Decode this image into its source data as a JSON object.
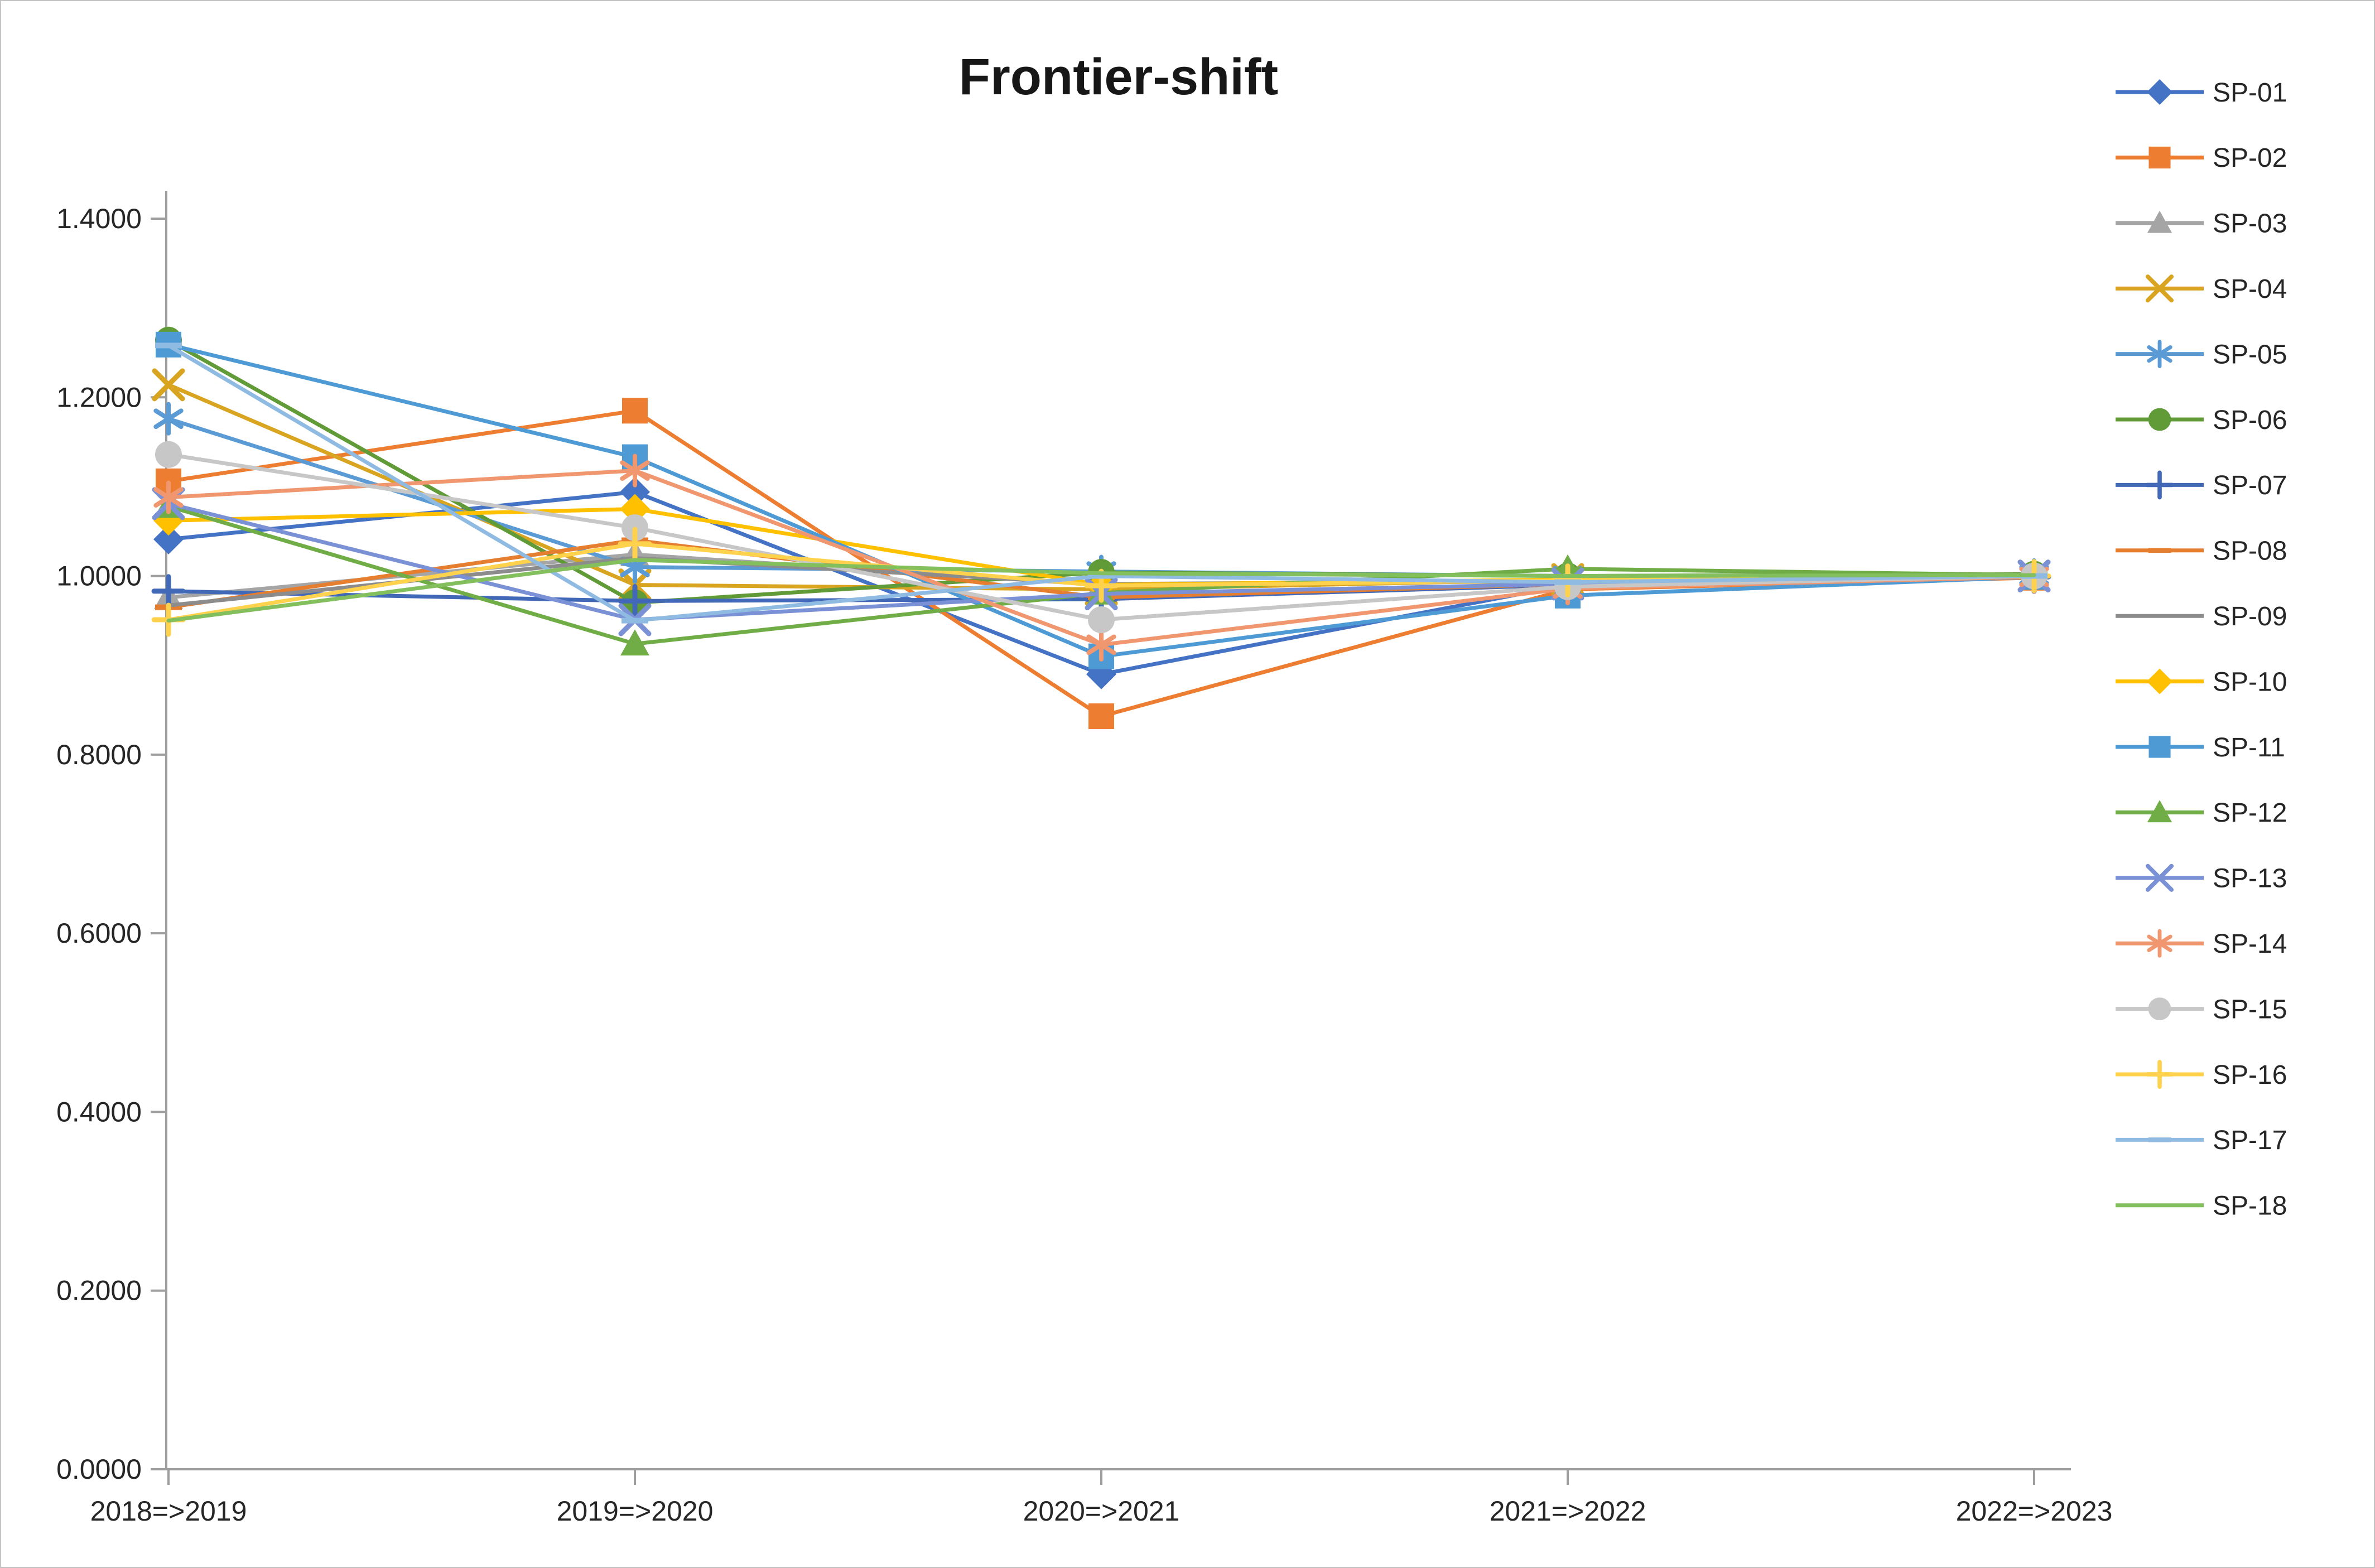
{
  "chart": {
    "title": "Frontier-shift"
  },
  "chart_data": {
    "type": "line",
    "title": "Frontier-shift",
    "categories": [
      "2018=>2019",
      "2019=>2020",
      "2020=>2021",
      "2021=>2022",
      "2022=>2023"
    ],
    "xlabel": "",
    "ylabel": "",
    "ylim": [
      0.0,
      1.4
    ],
    "y_tick_step": 0.2,
    "y_tick_decimals": 4,
    "y_tick_labels": [
      "0.0000",
      "0.2000",
      "0.4000",
      "0.6000",
      "0.8000",
      "1.0000",
      "1.2000",
      "1.4000"
    ],
    "grid": false,
    "legend_position": "right",
    "axis_color": "#9e9e9e",
    "series": [
      {
        "name": "SP-01",
        "color": "#4472C4",
        "marker": "diamond",
        "values": [
          1.041,
          1.094,
          0.89,
          0.99,
          1.0
        ]
      },
      {
        "name": "SP-02",
        "color": "#ED7D31",
        "marker": "square",
        "values": [
          1.106,
          1.185,
          0.843,
          0.985,
          0.998
        ]
      },
      {
        "name": "SP-03",
        "color": "#A5A5A5",
        "marker": "triangle",
        "values": [
          0.976,
          1.024,
          0.99,
          0.995,
          1.0
        ]
      },
      {
        "name": "SP-04",
        "color": "#D9A521",
        "marker": "x",
        "values": [
          1.214,
          0.99,
          0.985,
          0.996,
          1.0
        ]
      },
      {
        "name": "SP-05",
        "color": "#5B9BD5",
        "marker": "asterisk",
        "values": [
          1.176,
          1.01,
          1.005,
          1.0,
          1.001
        ]
      },
      {
        "name": "SP-06",
        "color": "#619B37",
        "marker": "circle",
        "values": [
          1.264,
          0.97,
          1.004,
          1.0,
          1.002
        ]
      },
      {
        "name": "SP-07",
        "color": "#4169B8",
        "marker": "plus",
        "values": [
          0.983,
          0.972,
          0.974,
          0.99,
          0.999
        ]
      },
      {
        "name": "SP-08",
        "color": "#E67E30",
        "marker": "dash",
        "values": [
          0.965,
          1.04,
          0.976,
          0.991,
          0.999
        ]
      },
      {
        "name": "SP-09",
        "color": "#8C8C8C",
        "marker": "none",
        "values": [
          0.967,
          1.02,
          0.991,
          0.994,
          1.0
        ]
      },
      {
        "name": "SP-10",
        "color": "#FFC000",
        "marker": "diamond",
        "values": [
          1.062,
          1.075,
          0.99,
          0.996,
          1.0
        ]
      },
      {
        "name": "SP-11",
        "color": "#4D9AD5",
        "marker": "square",
        "values": [
          1.259,
          1.133,
          0.91,
          0.978,
          0.999
        ]
      },
      {
        "name": "SP-12",
        "color": "#70AD47",
        "marker": "triangle",
        "values": [
          1.078,
          0.924,
          0.981,
          1.008,
          1.001
        ]
      },
      {
        "name": "SP-13",
        "color": "#7B91D6",
        "marker": "x",
        "values": [
          1.081,
          0.951,
          0.98,
          0.991,
          1.0
        ]
      },
      {
        "name": "SP-14",
        "color": "#F0976F",
        "marker": "asterisk",
        "values": [
          1.088,
          1.118,
          0.923,
          0.986,
          0.999
        ]
      },
      {
        "name": "SP-15",
        "color": "#C7C7C7",
        "marker": "circle",
        "values": [
          1.136,
          1.054,
          0.951,
          0.988,
          1.0
        ]
      },
      {
        "name": "SP-16",
        "color": "#FFD24D",
        "marker": "plus",
        "values": [
          0.951,
          1.036,
          0.989,
          0.995,
          1.0
        ]
      },
      {
        "name": "SP-17",
        "color": "#8FBBE2",
        "marker": "dash",
        "values": [
          1.258,
          0.95,
          1.0,
          0.993,
          1.0
        ]
      },
      {
        "name": "SP-18",
        "color": "#84BF5E",
        "marker": "none",
        "values": [
          0.95,
          1.018,
          1.003,
          1.0,
          1.001
        ]
      }
    ]
  }
}
